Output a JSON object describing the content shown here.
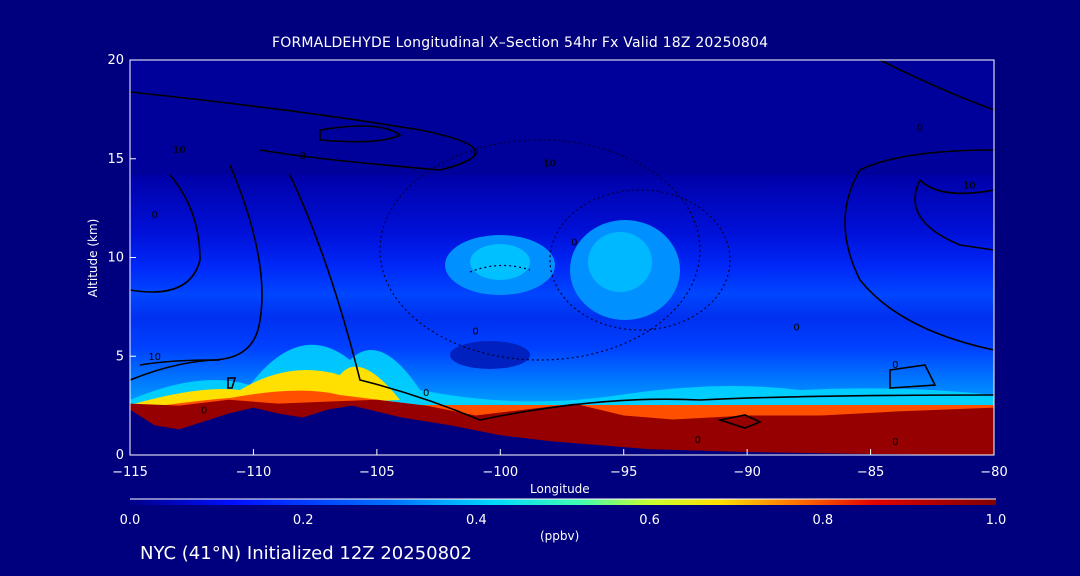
{
  "chart_data": {
    "type": "heatmap",
    "title": "FORMALDEHYDE Longitudinal X–Section 54hr  Fx Valid 18Z 20250804",
    "xlabel": "Longitude",
    "ylabel": "Altitude (km)",
    "xlim": [
      -115,
      -80
    ],
    "ylim": [
      0,
      20
    ],
    "x_ticks": [
      "−115",
      "−110",
      "−105",
      "−100",
      "−95",
      "−90",
      "−85",
      "−80"
    ],
    "x_tick_values": [
      -115,
      -110,
      -105,
      -100,
      -95,
      -90,
      -85,
      -80
    ],
    "y_ticks": [
      "0",
      "5",
      "10",
      "15",
      "20"
    ],
    "y_tick_values": [
      0,
      5,
      10,
      15,
      20
    ],
    "colorbar": {
      "label": "(ppbv)",
      "range": [
        0.0,
        1.0
      ],
      "ticks": [
        "0.0",
        "0.2",
        "0.4",
        "0.6",
        "0.8",
        "1.0"
      ],
      "tick_values": [
        0.0,
        0.2,
        0.4,
        0.6,
        0.8,
        1.0
      ]
    },
    "terrain_km": [
      {
        "lon": -115,
        "alt": 2.3
      },
      {
        "lon": -114,
        "alt": 1.5
      },
      {
        "lon": -113,
        "alt": 1.3
      },
      {
        "lon": -112,
        "alt": 1.7
      },
      {
        "lon": -111,
        "alt": 2.1
      },
      {
        "lon": -110,
        "alt": 2.4
      },
      {
        "lon": -109,
        "alt": 2.1
      },
      {
        "lon": -108,
        "alt": 1.9
      },
      {
        "lon": -107,
        "alt": 2.3
      },
      {
        "lon": -106,
        "alt": 2.5
      },
      {
        "lon": -105,
        "alt": 2.2
      },
      {
        "lon": -104,
        "alt": 1.9
      },
      {
        "lon": -102,
        "alt": 1.5
      },
      {
        "lon": -100,
        "alt": 1.0
      },
      {
        "lon": -98,
        "alt": 0.7
      },
      {
        "lon": -96,
        "alt": 0.5
      },
      {
        "lon": -94,
        "alt": 0.3
      },
      {
        "lon": -90,
        "alt": 0.15
      },
      {
        "lon": -85,
        "alt": 0.05
      },
      {
        "lon": -80,
        "alt": 0.0
      }
    ],
    "boundary_layer_top_km": [
      {
        "lon": -115,
        "alt": 2.6
      },
      {
        "lon": -113,
        "alt": 2.5
      },
      {
        "lon": -111,
        "alt": 2.8
      },
      {
        "lon": -109,
        "alt": 2.6
      },
      {
        "lon": -107,
        "alt": 2.7
      },
      {
        "lon": -105,
        "alt": 2.8
      },
      {
        "lon": -103,
        "alt": 2.5
      },
      {
        "lon": -101,
        "alt": 2.0
      },
      {
        "lon": -99,
        "alt": 2.3
      },
      {
        "lon": -97,
        "alt": 2.6
      },
      {
        "lon": -95,
        "alt": 2.0
      },
      {
        "lon": -93,
        "alt": 1.8
      },
      {
        "lon": -90,
        "alt": 2.0
      },
      {
        "lon": -87,
        "alt": 2.0
      },
      {
        "lon": -84,
        "alt": 2.2
      },
      {
        "lon": -80,
        "alt": 2.4
      }
    ],
    "contour_labels": [
      {
        "text": "10",
        "lon": -113,
        "alt": 15.3
      },
      {
        "text": "0",
        "lon": -108,
        "alt": 15.0
      },
      {
        "text": "0",
        "lon": -101,
        "alt": 15.2
      },
      {
        "text": "10",
        "lon": -98,
        "alt": 14.6
      },
      {
        "text": "0",
        "lon": -83,
        "alt": 16.4
      },
      {
        "text": "10",
        "lon": -81,
        "alt": 13.5
      },
      {
        "text": "0",
        "lon": -114,
        "alt": 12.0
      },
      {
        "text": "0",
        "lon": -97,
        "alt": 10.6
      },
      {
        "text": "0",
        "lon": -101,
        "alt": 6.1
      },
      {
        "text": "10",
        "lon": -114,
        "alt": 4.8
      },
      {
        "text": "0",
        "lon": -88,
        "alt": 6.3
      },
      {
        "text": "0",
        "lon": -84,
        "alt": 4.4
      },
      {
        "text": "0",
        "lon": -112,
        "alt": 2.1
      },
      {
        "text": "0",
        "lon": -103,
        "alt": 3.0
      },
      {
        "text": "0",
        "lon": -92,
        "alt": 0.6
      },
      {
        "text": "0",
        "lon": -84,
        "alt": 0.5
      }
    ]
  },
  "footer": {
    "location": "NYC (41°N) Initialized 12Z 20250802"
  }
}
